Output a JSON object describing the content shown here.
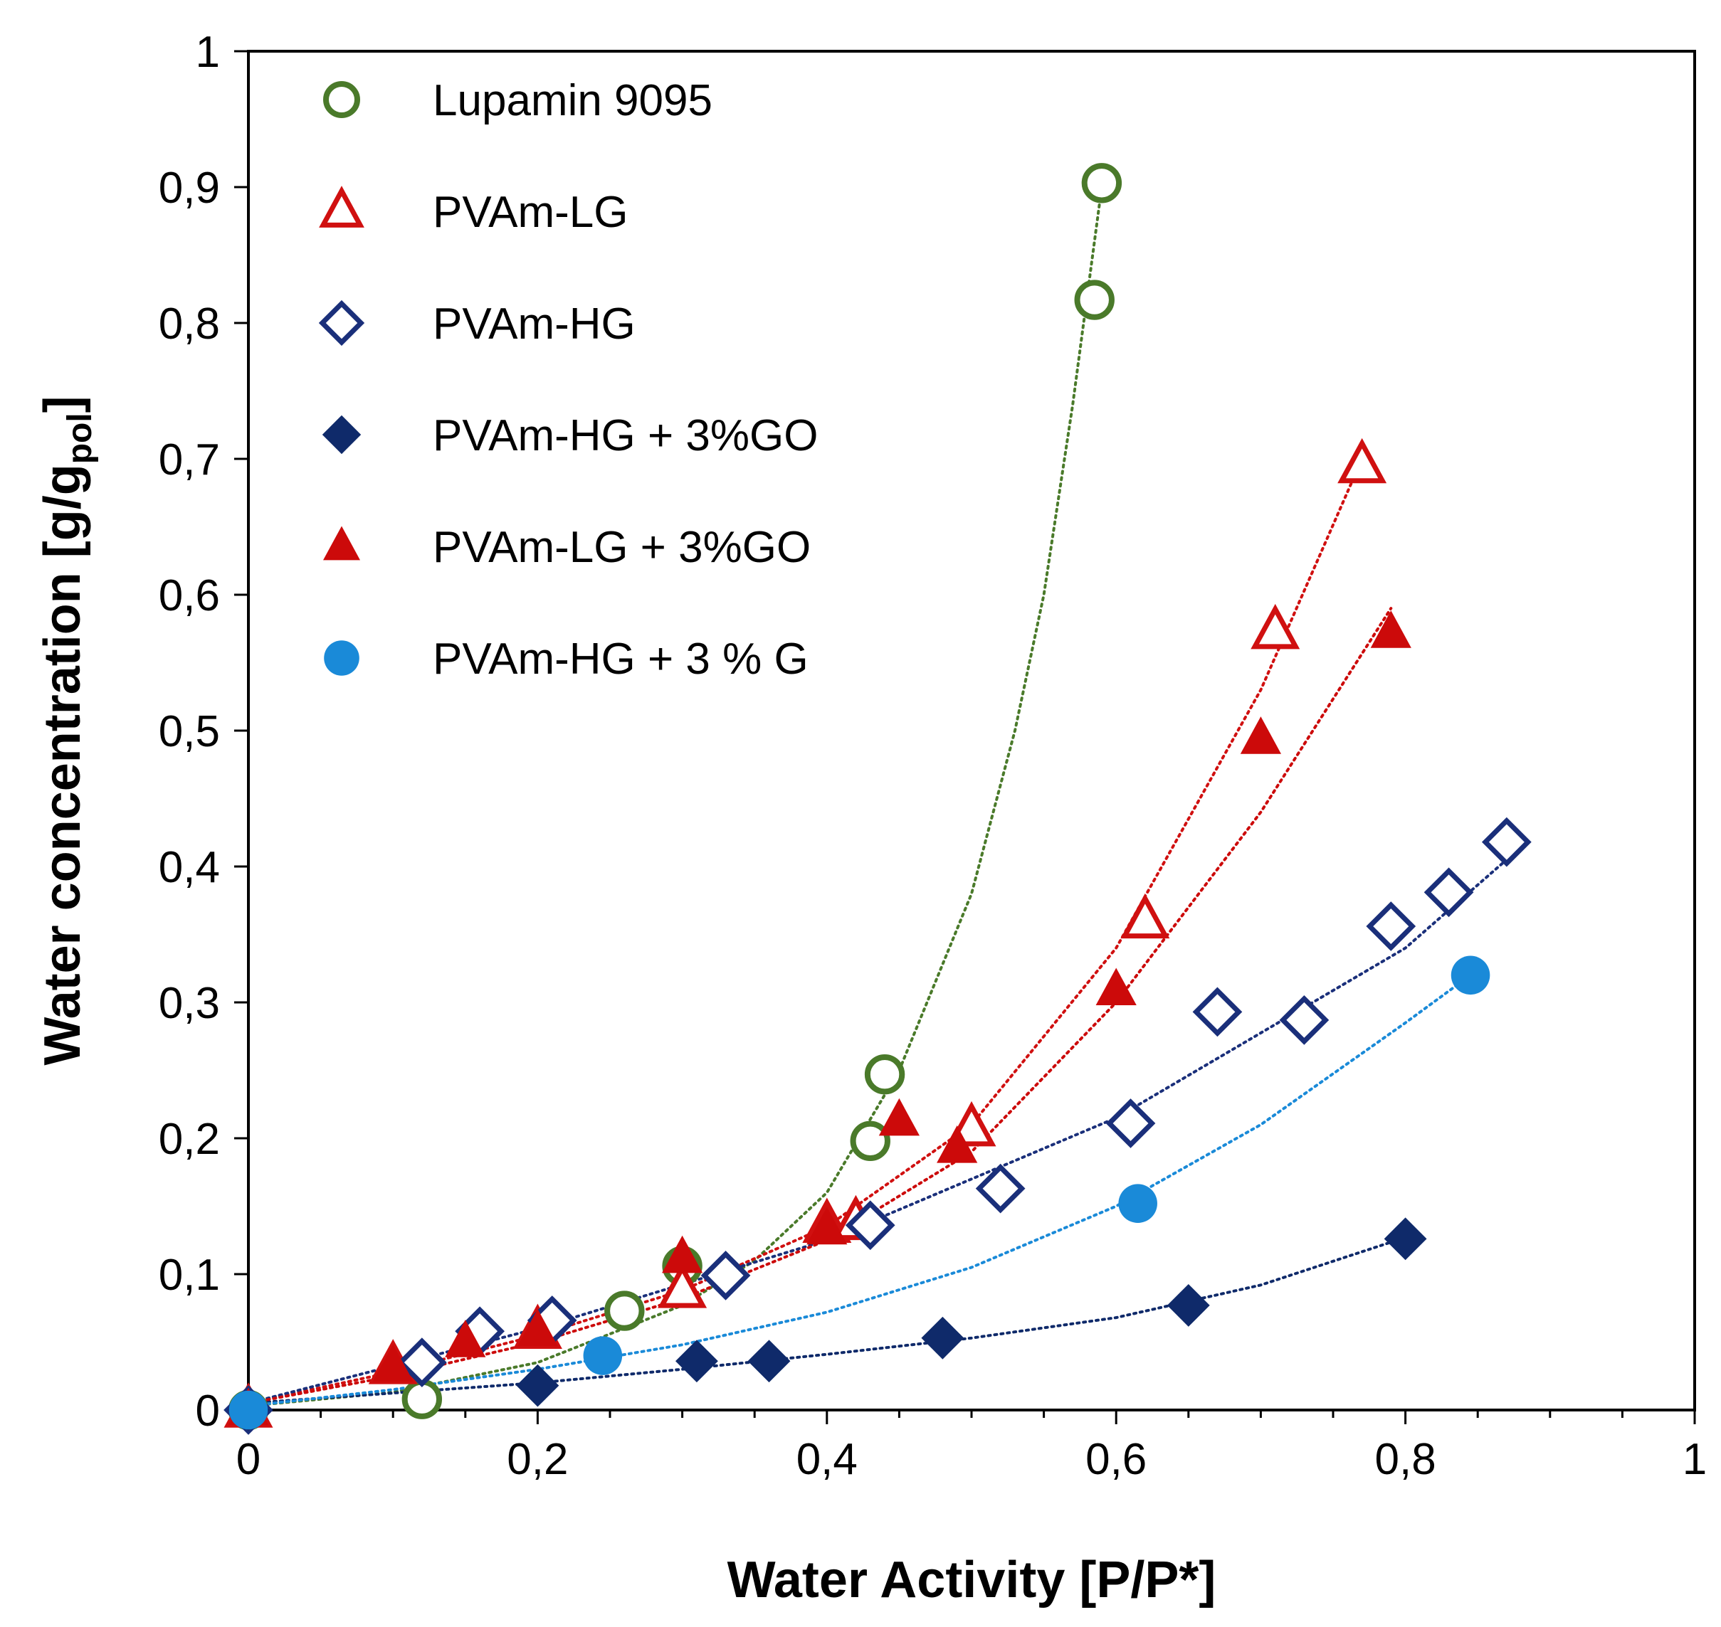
{
  "chart_data": {
    "type": "scatter",
    "xlabel": "Water Activity [P/P*]",
    "ylabel_main": "Water concentration [g/g",
    "ylabel_sub": "pol",
    "ylabel_end": "]",
    "xlim": [
      0,
      1
    ],
    "ylim": [
      0,
      1
    ],
    "xticks": [
      0,
      0.2,
      0.4,
      0.6,
      0.8,
      1
    ],
    "xtick_labels": [
      "0",
      "0,2",
      "0,4",
      "0,6",
      "0,8",
      "1"
    ],
    "yticks": [
      0,
      0.1,
      0.2,
      0.3,
      0.4,
      0.5,
      0.6,
      0.7,
      0.8,
      0.9,
      1
    ],
    "ytick_labels": [
      "0",
      "0,1",
      "0,2",
      "0,3",
      "0,4",
      "0,5",
      "0,6",
      "0,7",
      "0,8",
      "0,9",
      "1"
    ],
    "legend_position": "top-left",
    "series": [
      {
        "name": "Lupamin 9095",
        "marker": "circle-open",
        "color": "#4a7a2a",
        "x": [
          0,
          0.12,
          0.26,
          0.3,
          0.43,
          0.44,
          0.585,
          0.59
        ],
        "y": [
          0,
          0.008,
          0.073,
          0.106,
          0.198,
          0.247,
          0.817,
          0.903
        ],
        "fit_x": [
          0,
          0.1,
          0.2,
          0.3,
          0.35,
          0.4,
          0.45,
          0.5,
          0.53,
          0.55,
          0.57,
          0.59
        ],
        "fit_y": [
          0.003,
          0.013,
          0.035,
          0.077,
          0.11,
          0.16,
          0.25,
          0.38,
          0.5,
          0.6,
          0.74,
          0.9
        ]
      },
      {
        "name": "PVAm-LG",
        "marker": "triangle-open",
        "color": "#d01010",
        "x": [
          0,
          0.1,
          0.2,
          0.3,
          0.4,
          0.42,
          0.5,
          0.62,
          0.71,
          0.77
        ],
        "y": [
          0,
          0.032,
          0.058,
          0.088,
          0.136,
          0.138,
          0.207,
          0.36,
          0.573,
          0.695
        ],
        "fit_x": [
          0,
          0.1,
          0.2,
          0.3,
          0.4,
          0.5,
          0.6,
          0.7,
          0.77
        ],
        "fit_y": [
          0.005,
          0.028,
          0.055,
          0.088,
          0.135,
          0.21,
          0.34,
          0.53,
          0.7
        ]
      },
      {
        "name": "PVAm-HG",
        "marker": "diamond-open",
        "color": "#1a2f7a",
        "x": [
          0,
          0.12,
          0.16,
          0.21,
          0.33,
          0.43,
          0.52,
          0.61,
          0.67,
          0.73,
          0.79,
          0.83,
          0.87
        ],
        "y": [
          0,
          0.035,
          0.058,
          0.066,
          0.099,
          0.136,
          0.163,
          0.211,
          0.293,
          0.287,
          0.356,
          0.381,
          0.418
        ],
        "fit_x": [
          0,
          0.2,
          0.4,
          0.6,
          0.8,
          0.87
        ],
        "fit_y": [
          0.005,
          0.06,
          0.125,
          0.215,
          0.34,
          0.405
        ]
      },
      {
        "name": "PVAm-HG + 3%GO",
        "marker": "diamond-filled",
        "color": "#0f2a6a",
        "x": [
          0,
          0.2,
          0.31,
          0.36,
          0.48,
          0.65,
          0.8
        ],
        "y": [
          0,
          0.018,
          0.036,
          0.036,
          0.053,
          0.077,
          0.126
        ],
        "fit_x": [
          0,
          0.2,
          0.3,
          0.4,
          0.5,
          0.6,
          0.7,
          0.8
        ],
        "fit_y": [
          0.005,
          0.02,
          0.03,
          0.041,
          0.053,
          0.068,
          0.092,
          0.127
        ]
      },
      {
        "name": "PVAm-LG + 3%GO",
        "marker": "triangle-filled",
        "color": "#cc0a0a",
        "x": [
          0,
          0.1,
          0.15,
          0.2,
          0.3,
          0.4,
          0.45,
          0.49,
          0.6,
          0.7,
          0.79
        ],
        "y": [
          0,
          0.032,
          0.05,
          0.058,
          0.112,
          0.133,
          0.213,
          0.193,
          0.309,
          0.494,
          0.572
        ],
        "fit_x": [
          0,
          0.1,
          0.2,
          0.3,
          0.4,
          0.5,
          0.6,
          0.7,
          0.79
        ],
        "fit_y": [
          0.005,
          0.025,
          0.05,
          0.082,
          0.125,
          0.19,
          0.3,
          0.44,
          0.59
        ]
      },
      {
        "name": "PVAm-HG + 3 % G",
        "marker": "circle-filled",
        "color": "#1a8ad8",
        "x": [
          0,
          0.245,
          0.615,
          0.845
        ],
        "y": [
          0,
          0.04,
          0.152,
          0.32
        ],
        "fit_x": [
          0,
          0.1,
          0.2,
          0.3,
          0.4,
          0.5,
          0.6,
          0.7,
          0.8,
          0.845
        ],
        "fit_y": [
          0.003,
          0.015,
          0.03,
          0.048,
          0.072,
          0.105,
          0.15,
          0.21,
          0.285,
          0.32
        ]
      }
    ]
  }
}
